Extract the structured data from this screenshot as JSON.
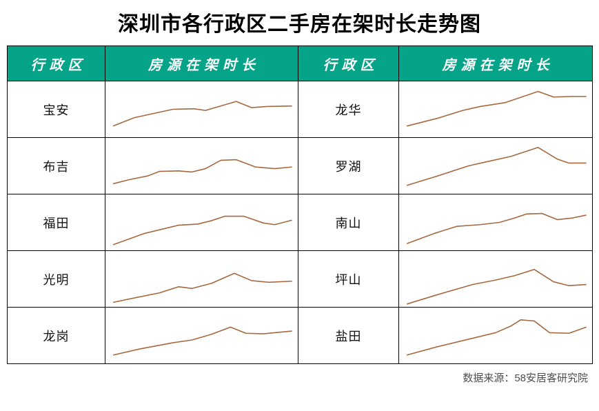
{
  "title": "深圳市各行政区二手房在架时长走势图",
  "footer": {
    "source": "数据来源：58安居客研究院"
  },
  "table": {
    "header": {
      "district_label": "行政区",
      "trend_label": "房源在架时长"
    }
  },
  "colors": {
    "header_bg": "#05A387",
    "header_text": "#ffffff",
    "line": "#A5683F",
    "border": "#000000",
    "footer_text": "#4d4d4d"
  },
  "chart_data": {
    "type": "line",
    "title": "深圳市各行政区二手房在架时长走势图",
    "note": "sparklines without axes; values are relative heights 0-100 read from pixels",
    "ylim": [
      0,
      100
    ],
    "line_color": "#A5683F",
    "series": [
      {
        "name": "宝安",
        "points": [
          [
            4,
            20
          ],
          [
            15,
            35
          ],
          [
            35,
            50
          ],
          [
            46,
            51
          ],
          [
            52,
            48
          ],
          [
            62,
            58
          ],
          [
            68,
            64
          ],
          [
            76,
            53
          ],
          [
            84,
            55
          ],
          [
            97,
            56
          ]
        ]
      },
      {
        "name": "布吉",
        "points": [
          [
            4,
            18
          ],
          [
            12,
            25
          ],
          [
            22,
            32
          ],
          [
            28,
            40
          ],
          [
            38,
            41
          ],
          [
            45,
            39
          ],
          [
            52,
            45
          ],
          [
            60,
            60
          ],
          [
            68,
            61
          ],
          [
            78,
            48
          ],
          [
            88,
            45
          ],
          [
            97,
            48
          ]
        ]
      },
      {
        "name": "福田",
        "points": [
          [
            4,
            10
          ],
          [
            20,
            30
          ],
          [
            38,
            45
          ],
          [
            48,
            47
          ],
          [
            55,
            53
          ],
          [
            62,
            61
          ],
          [
            72,
            61
          ],
          [
            82,
            49
          ],
          [
            88,
            46
          ],
          [
            97,
            54
          ]
        ]
      },
      {
        "name": "光明",
        "points": [
          [
            4,
            8
          ],
          [
            15,
            16
          ],
          [
            28,
            25
          ],
          [
            38,
            36
          ],
          [
            45,
            33
          ],
          [
            55,
            42
          ],
          [
            67,
            60
          ],
          [
            76,
            47
          ],
          [
            85,
            44
          ],
          [
            97,
            46
          ]
        ]
      },
      {
        "name": "龙岗",
        "points": [
          [
            4,
            15
          ],
          [
            18,
            26
          ],
          [
            35,
            37
          ],
          [
            45,
            42
          ],
          [
            55,
            52
          ],
          [
            65,
            65
          ],
          [
            73,
            54
          ],
          [
            82,
            53
          ],
          [
            97,
            58
          ]
        ]
      },
      {
        "name": "龙华",
        "points": [
          [
            4,
            20
          ],
          [
            20,
            34
          ],
          [
            33,
            48
          ],
          [
            42,
            55
          ],
          [
            55,
            62
          ],
          [
            72,
            82
          ],
          [
            80,
            72
          ],
          [
            90,
            73
          ],
          [
            97,
            73
          ]
        ]
      },
      {
        "name": "罗湖",
        "points": [
          [
            4,
            15
          ],
          [
            20,
            32
          ],
          [
            36,
            50
          ],
          [
            45,
            57
          ],
          [
            58,
            67
          ],
          [
            72,
            83
          ],
          [
            82,
            62
          ],
          [
            88,
            55
          ],
          [
            97,
            55
          ]
        ]
      },
      {
        "name": "南山",
        "points": [
          [
            4,
            12
          ],
          [
            18,
            30
          ],
          [
            30,
            43
          ],
          [
            42,
            46
          ],
          [
            52,
            50
          ],
          [
            60,
            58
          ],
          [
            66,
            65
          ],
          [
            74,
            66
          ],
          [
            82,
            55
          ],
          [
            90,
            58
          ],
          [
            97,
            63
          ]
        ]
      },
      {
        "name": "坪山",
        "points": [
          [
            4,
            5
          ],
          [
            20,
            22
          ],
          [
            38,
            40
          ],
          [
            50,
            48
          ],
          [
            60,
            56
          ],
          [
            70,
            67
          ],
          [
            80,
            45
          ],
          [
            88,
            38
          ],
          [
            97,
            40
          ]
        ]
      },
      {
        "name": "盐田",
        "points": [
          [
            4,
            15
          ],
          [
            20,
            30
          ],
          [
            38,
            45
          ],
          [
            50,
            55
          ],
          [
            58,
            67
          ],
          [
            63,
            78
          ],
          [
            70,
            76
          ],
          [
            78,
            55
          ],
          [
            88,
            54
          ],
          [
            97,
            65
          ]
        ]
      }
    ]
  }
}
